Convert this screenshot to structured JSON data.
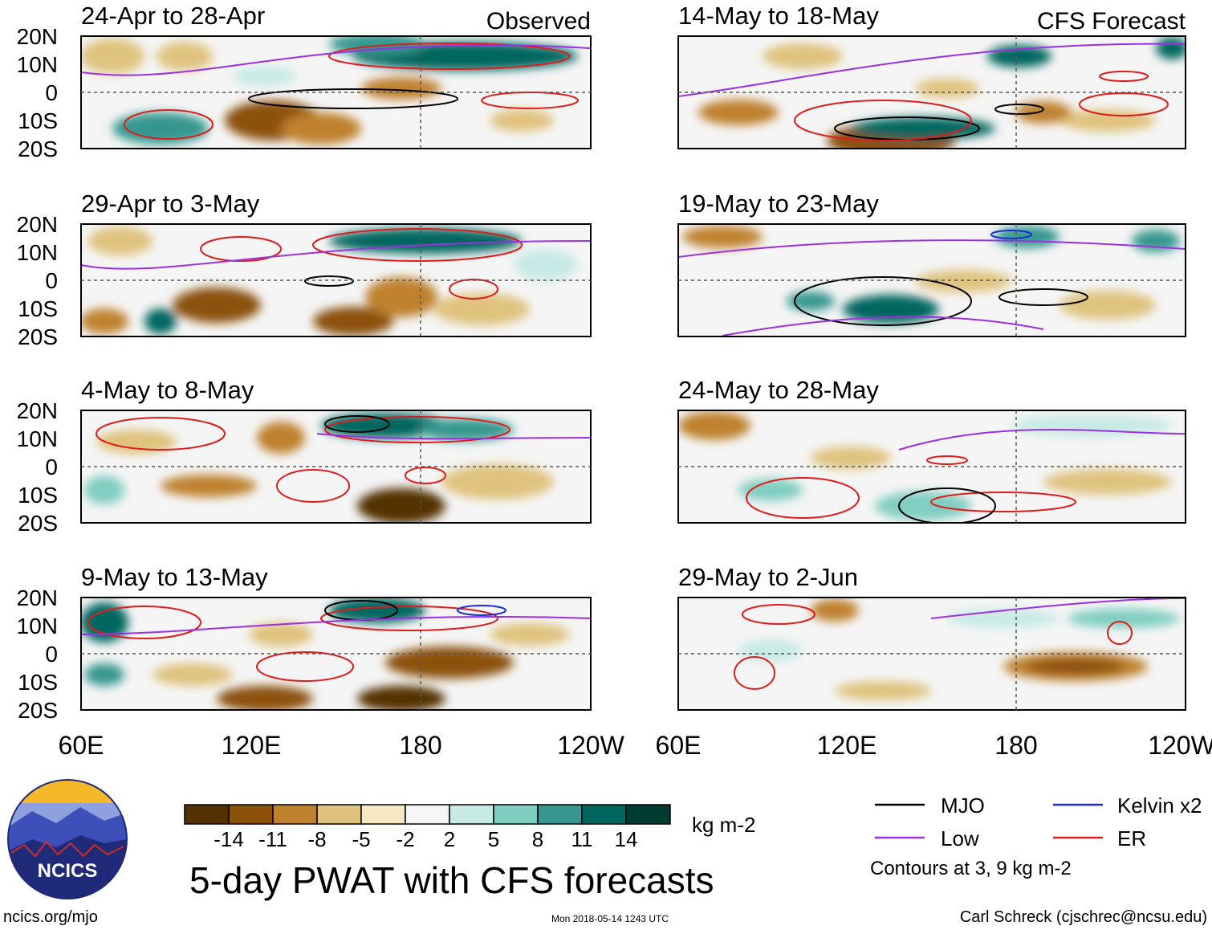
{
  "panels": [
    {
      "title": "24-Apr to 28-Apr",
      "tag": "Observed"
    },
    {
      "title": "29-Apr to 3-May",
      "tag": ""
    },
    {
      "title": "4-May to 8-May",
      "tag": ""
    },
    {
      "title": "9-May to 13-May",
      "tag": ""
    },
    {
      "title": "14-May to 18-May",
      "tag": "CFS Forecast"
    },
    {
      "title": "19-May to 23-May",
      "tag": ""
    },
    {
      "title": "24-May to 28-May",
      "tag": ""
    },
    {
      "title": "29-May to 2-Jun",
      "tag": ""
    }
  ],
  "lat_labels": [
    "20N",
    "10N",
    "0",
    "10S",
    "20S"
  ],
  "lon_labels": [
    "60E",
    "120E",
    "180",
    "120W"
  ],
  "colorbar": {
    "ticks": [
      "-14",
      "-11",
      "-8",
      "-5",
      "-2",
      "2",
      "5",
      "8",
      "11",
      "14"
    ],
    "colors": [
      "#543005",
      "#8c510a",
      "#bf812d",
      "#dfc27d",
      "#f6e8c3",
      "#f5f5f5",
      "#c7eae5",
      "#80cdc1",
      "#35978f",
      "#01665e",
      "#003c30"
    ],
    "units": "kg m-2"
  },
  "legend": {
    "items": [
      {
        "label": "MJO",
        "color": "#000000"
      },
      {
        "label": "Kelvin x2",
        "color": "#1a2bd6"
      },
      {
        "label": "Low",
        "color": "#9b30e0"
      },
      {
        "label": "ER",
        "color": "#e01b1b"
      }
    ],
    "note": "Contours at 3, 9 kg m-2"
  },
  "logo": {
    "text": "NCICS"
  },
  "main_title": "5-day PWAT with CFS forecasts",
  "footer": {
    "left": "ncics.org/mjo",
    "center": "Mon 2018-05-14 1243 UTC",
    "right": "Carl Schreck (cjschrec@ncsu.edu)"
  },
  "colors": {
    "dashed": "#555555",
    "coast": "#707070",
    "brown": "#8c510a",
    "tan": "#dfc27d",
    "teal": "#35978f",
    "dark_teal": "#01665e"
  }
}
